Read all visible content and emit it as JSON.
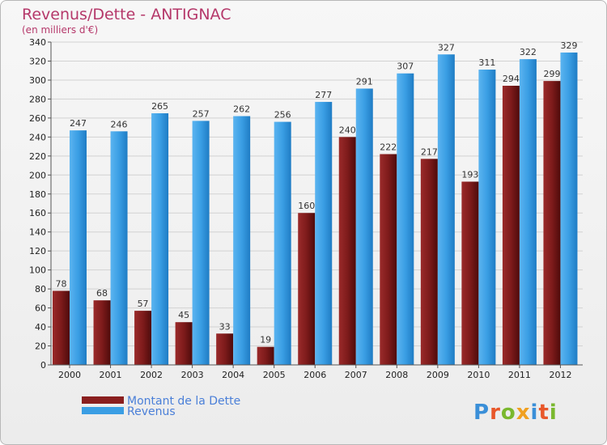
{
  "chart_data": {
    "type": "bar",
    "title": "Revenus/Dette - ANTIGNAC",
    "subtitle": "(en milliers d'€)",
    "categories": [
      "2000",
      "2001",
      "2002",
      "2003",
      "2004",
      "2005",
      "2006",
      "2007",
      "2008",
      "2009",
      "2010",
      "2011",
      "2012"
    ],
    "series": [
      {
        "name": "Montant de la Dette",
        "color": "#8a1f1f",
        "values": [
          78,
          68,
          57,
          45,
          33,
          19,
          160,
          240,
          222,
          217,
          193,
          294,
          299
        ]
      },
      {
        "name": "Revenus",
        "color": "#3a9ee4",
        "values": [
          247,
          246,
          265,
          257,
          262,
          256,
          277,
          291,
          307,
          327,
          311,
          322,
          329
        ]
      }
    ],
    "ylim": [
      0,
      340
    ],
    "yticks": [
      0,
      20,
      40,
      60,
      80,
      100,
      120,
      140,
      160,
      180,
      200,
      220,
      240,
      260,
      280,
      300,
      320,
      340
    ],
    "grid": true,
    "legend": "bottom-left"
  },
  "logo": {
    "text": "Proxiti"
  }
}
